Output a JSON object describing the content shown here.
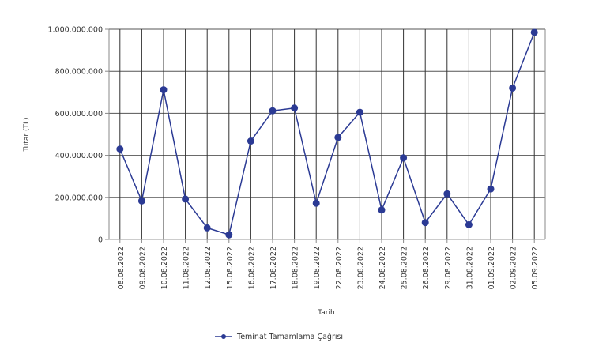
{
  "chart_data": {
    "type": "line",
    "xlabel": "Tarih",
    "ylabel": "Tutar (TL)",
    "ylim": [
      0,
      1000000000
    ],
    "yticks": [
      {
        "value": 0,
        "label": "0"
      },
      {
        "value": 200000000,
        "label": "200.000.000"
      },
      {
        "value": 400000000,
        "label": "400.000.000"
      },
      {
        "value": 600000000,
        "label": "600.000.000"
      },
      {
        "value": 800000000,
        "label": "800.000.000"
      },
      {
        "value": 1000000000,
        "label": "1.000.000.000"
      }
    ],
    "categories": [
      "08.08.2022",
      "09.08.2022",
      "10.08.2022",
      "11.08.2022",
      "12.08.2022",
      "15.08.2022",
      "16.08.2022",
      "17.08.2022",
      "18.08.2022",
      "19.08.2022",
      "22.08.2022",
      "23.08.2022",
      "24.08.2022",
      "25.08.2022",
      "26.08.2022",
      "29.08.2022",
      "31.08.2022",
      "01.09.2022",
      "02.09.2022",
      "05.09.2022"
    ],
    "series": [
      {
        "name": "Teminat Tamamlama Çağrısı",
        "color": "#2b3a94",
        "values": [
          430000000,
          183000000,
          712000000,
          192000000,
          55000000,
          22000000,
          468000000,
          612000000,
          625000000,
          172000000,
          485000000,
          605000000,
          140000000,
          388000000,
          80000000,
          217000000,
          70000000,
          240000000,
          720000000,
          985000000
        ]
      }
    ],
    "grid": true,
    "legend_position": "bottom-left"
  }
}
